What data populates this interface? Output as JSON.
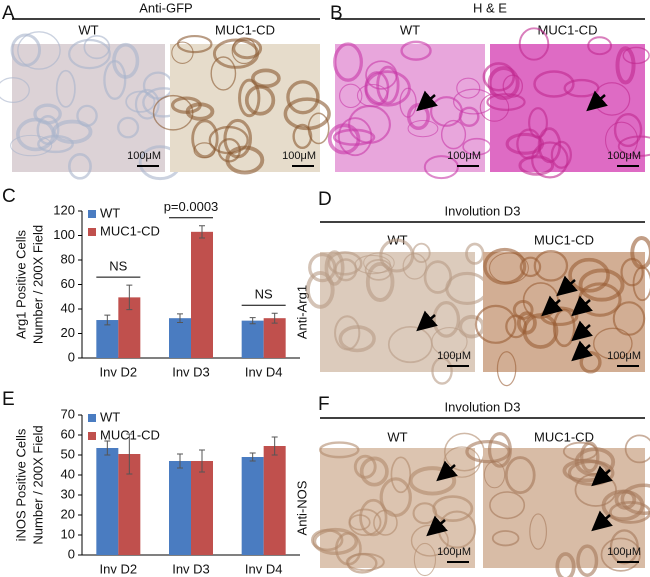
{
  "panels": {
    "A": {
      "letter": "A",
      "title": "Anti-GFP",
      "columns": [
        "WT",
        "MUC1-CD"
      ],
      "scale_bars": [
        "100μM",
        "100μM"
      ]
    },
    "B": {
      "letter": "B",
      "title": "H & E",
      "columns": [
        "WT",
        "MUC1-CD"
      ],
      "scale_bars": [
        "100μM",
        "100μM"
      ]
    },
    "D": {
      "letter": "D",
      "title": "Involution D3",
      "columns": [
        "WT",
        "MUC1-CD"
      ],
      "row_label": "Anti-Arg1",
      "scale_bars": [
        "100μM",
        "100μM"
      ]
    },
    "F": {
      "letter": "F",
      "title": "Involution D3",
      "columns": [
        "WT",
        "MUC1-CD"
      ],
      "row_label": "Anti-NOS",
      "scale_bars": [
        "100μM",
        "100μM"
      ]
    }
  },
  "chart_data": [
    {
      "type": "bar",
      "panel_label": "C",
      "ylabel": [
        "Arg1 Positive Cells",
        "Number / 200X Field"
      ],
      "categories": [
        "Inv D2",
        "Inv D3",
        "Inv D4"
      ],
      "series": [
        {
          "name": "WT",
          "color": "#4a7cc1",
          "values": [
            31,
            32.5,
            30.5
          ],
          "errors": [
            4,
            3.5,
            2.5
          ]
        },
        {
          "name": "MUC1-CD",
          "color": "#c0504d",
          "values": [
            49.5,
            103,
            32.5
          ],
          "errors": [
            10,
            5,
            4
          ]
        }
      ],
      "annotations": [
        "NS",
        "p=0.0003",
        "NS"
      ],
      "ylim": [
        0,
        120
      ],
      "yticks": [
        0,
        20,
        40,
        60,
        80,
        100,
        120
      ]
    },
    {
      "type": "bar",
      "panel_label": "E",
      "ylabel": [
        "iNOS Positive Cells",
        "Number / 200X Field"
      ],
      "categories": [
        "Inv D2",
        "Inv D3",
        "Inv D4"
      ],
      "series": [
        {
          "name": "WT",
          "color": "#4a7cc1",
          "values": [
            53.5,
            47,
            49
          ],
          "errors": [
            3.5,
            3.5,
            2
          ]
        },
        {
          "name": "MUC1-CD",
          "color": "#c0504d",
          "values": [
            50.5,
            47,
            54.5
          ],
          "errors": [
            10,
            5.5,
            4.5
          ]
        }
      ],
      "ylim": [
        0,
        70
      ],
      "yticks": [
        0,
        10,
        20,
        30,
        40,
        50,
        60,
        70
      ]
    }
  ]
}
